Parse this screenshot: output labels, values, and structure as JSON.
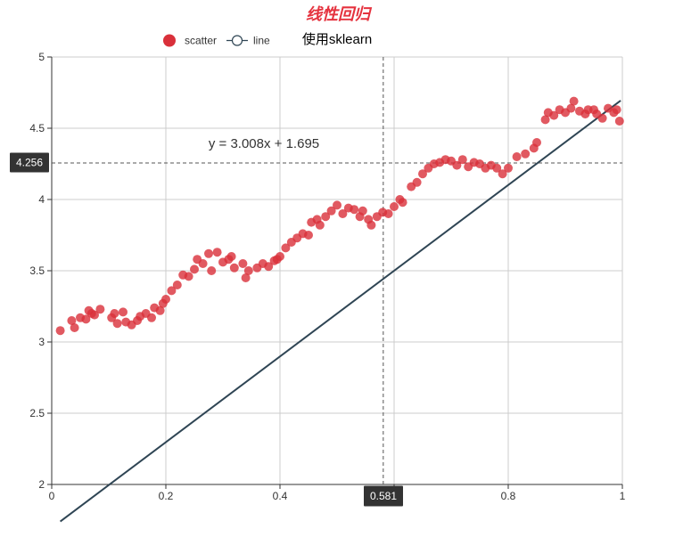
{
  "title": "线性回归",
  "subtitle": "使用sklearn",
  "legend": {
    "scatter_label": "scatter",
    "line_label": "line"
  },
  "equation": "y = 3.008x + 1.695",
  "crosshair": {
    "x_value": "0.581",
    "y_value": "4.256",
    "x": 0.581,
    "y": 4.256
  },
  "colors": {
    "title": "#e5323e",
    "scatter": "#d9303a",
    "line": "#2f4554",
    "grid": "#cccccc",
    "axis": "#333333",
    "tooltip_bg": "#333333"
  },
  "chart_data": {
    "type": "scatter",
    "title": "线性回归",
    "subtitle": "使用sklearn",
    "xlim": [
      0,
      1
    ],
    "ylim": [
      2,
      5
    ],
    "x_ticks": [
      "0",
      "0.2",
      "0.4",
      "0.6",
      "0.8",
      "1"
    ],
    "y_ticks": [
      "2",
      "2.5",
      "3",
      "3.5",
      "4",
      "4.5",
      "5"
    ],
    "grid": true,
    "legend_position": "top",
    "series": [
      {
        "name": "scatter",
        "type": "scatter",
        "points": [
          [
            0.015,
            3.08
          ],
          [
            0.035,
            3.15
          ],
          [
            0.04,
            3.1
          ],
          [
            0.05,
            3.17
          ],
          [
            0.06,
            3.16
          ],
          [
            0.065,
            3.22
          ],
          [
            0.07,
            3.2
          ],
          [
            0.075,
            3.19
          ],
          [
            0.085,
            3.23
          ],
          [
            0.105,
            3.17
          ],
          [
            0.11,
            3.2
          ],
          [
            0.115,
            3.13
          ],
          [
            0.125,
            3.21
          ],
          [
            0.13,
            3.14
          ],
          [
            0.14,
            3.12
          ],
          [
            0.15,
            3.15
          ],
          [
            0.155,
            3.18
          ],
          [
            0.165,
            3.2
          ],
          [
            0.175,
            3.17
          ],
          [
            0.18,
            3.24
          ],
          [
            0.19,
            3.22
          ],
          [
            0.195,
            3.27
          ],
          [
            0.2,
            3.3
          ],
          [
            0.21,
            3.36
          ],
          [
            0.22,
            3.4
          ],
          [
            0.23,
            3.47
          ],
          [
            0.24,
            3.46
          ],
          [
            0.25,
            3.51
          ],
          [
            0.255,
            3.58
          ],
          [
            0.265,
            3.55
          ],
          [
            0.275,
            3.62
          ],
          [
            0.28,
            3.5
          ],
          [
            0.29,
            3.63
          ],
          [
            0.3,
            3.56
          ],
          [
            0.31,
            3.58
          ],
          [
            0.315,
            3.6
          ],
          [
            0.32,
            3.52
          ],
          [
            0.335,
            3.55
          ],
          [
            0.34,
            3.45
          ],
          [
            0.345,
            3.5
          ],
          [
            0.36,
            3.52
          ],
          [
            0.37,
            3.55
          ],
          [
            0.38,
            3.53
          ],
          [
            0.39,
            3.57
          ],
          [
            0.395,
            3.58
          ],
          [
            0.4,
            3.6
          ],
          [
            0.41,
            3.66
          ],
          [
            0.42,
            3.7
          ],
          [
            0.43,
            3.73
          ],
          [
            0.44,
            3.76
          ],
          [
            0.45,
            3.75
          ],
          [
            0.455,
            3.84
          ],
          [
            0.465,
            3.86
          ],
          [
            0.47,
            3.82
          ],
          [
            0.48,
            3.88
          ],
          [
            0.49,
            3.92
          ],
          [
            0.5,
            3.96
          ],
          [
            0.51,
            3.9
          ],
          [
            0.52,
            3.94
          ],
          [
            0.53,
            3.93
          ],
          [
            0.54,
            3.88
          ],
          [
            0.545,
            3.92
          ],
          [
            0.555,
            3.86
          ],
          [
            0.56,
            3.82
          ],
          [
            0.57,
            3.88
          ],
          [
            0.58,
            3.91
          ],
          [
            0.59,
            3.9
          ],
          [
            0.6,
            3.95
          ],
          [
            0.61,
            4.0
          ],
          [
            0.615,
            3.98
          ],
          [
            0.63,
            4.09
          ],
          [
            0.64,
            4.12
          ],
          [
            0.65,
            4.18
          ],
          [
            0.66,
            4.22
          ],
          [
            0.67,
            4.25
          ],
          [
            0.68,
            4.26
          ],
          [
            0.69,
            4.28
          ],
          [
            0.7,
            4.27
          ],
          [
            0.71,
            4.24
          ],
          [
            0.72,
            4.28
          ],
          [
            0.73,
            4.23
          ],
          [
            0.74,
            4.26
          ],
          [
            0.75,
            4.25
          ],
          [
            0.76,
            4.22
          ],
          [
            0.77,
            4.24
          ],
          [
            0.78,
            4.22
          ],
          [
            0.79,
            4.18
          ],
          [
            0.8,
            4.22
          ],
          [
            0.815,
            4.3
          ],
          [
            0.83,
            4.32
          ],
          [
            0.845,
            4.36
          ],
          [
            0.85,
            4.4
          ],
          [
            0.865,
            4.56
          ],
          [
            0.87,
            4.61
          ],
          [
            0.88,
            4.59
          ],
          [
            0.89,
            4.63
          ],
          [
            0.9,
            4.61
          ],
          [
            0.91,
            4.64
          ],
          [
            0.915,
            4.69
          ],
          [
            0.925,
            4.62
          ],
          [
            0.935,
            4.6
          ],
          [
            0.94,
            4.63
          ],
          [
            0.95,
            4.63
          ],
          [
            0.955,
            4.6
          ],
          [
            0.965,
            4.57
          ],
          [
            0.975,
            4.64
          ],
          [
            0.985,
            4.61
          ],
          [
            0.99,
            4.63
          ],
          [
            0.995,
            4.55
          ]
        ]
      },
      {
        "name": "line",
        "type": "line",
        "slope": 3.008,
        "intercept": 1.695,
        "x_range": [
          0.015,
          0.997
        ]
      }
    ]
  }
}
